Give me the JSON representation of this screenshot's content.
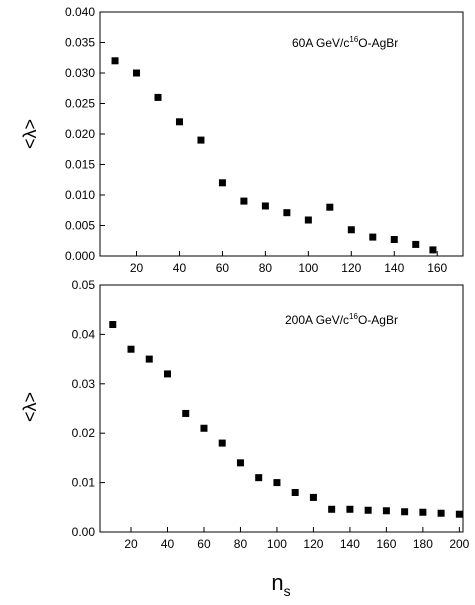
{
  "chart_data": [
    {
      "type": "scatter",
      "annotation": {
        "pre": "60A GeV/c",
        "sup": "16",
        "post": "O-AgBr"
      },
      "ylabel": "<λ>",
      "xlabel": "",
      "xlim": [
        3,
        172
      ],
      "ylim": [
        0,
        0.04
      ],
      "xticks": [
        20,
        40,
        60,
        80,
        100,
        120,
        140,
        160
      ],
      "yticks": [
        0.0,
        0.005,
        0.01,
        0.015,
        0.02,
        0.025,
        0.03,
        0.035,
        0.04
      ],
      "ytick_labels": [
        "0.000",
        "0.005",
        "0.010",
        "0.015",
        "0.020",
        "0.025",
        "0.030",
        "0.035",
        "0.040"
      ],
      "series": [
        {
          "x": [
            10,
            20,
            30,
            40,
            50,
            60,
            70,
            80,
            90,
            100,
            110,
            120,
            130,
            140,
            150,
            158
          ],
          "y": [
            0.032,
            0.03,
            0.026,
            0.022,
            0.019,
            0.012,
            0.009,
            0.0082,
            0.0071,
            0.0059,
            0.008,
            0.0043,
            0.0031,
            0.0027,
            0.0019,
            0.001
          ]
        }
      ]
    },
    {
      "type": "scatter",
      "annotation": {
        "pre": "200A GeV/c",
        "sup": "16",
        "post": "O-AgBr"
      },
      "ylabel": "<λ>",
      "xlabel": "n_s",
      "xlim": [
        3,
        202
      ],
      "ylim": [
        0,
        0.05
      ],
      "xticks": [
        20,
        40,
        60,
        80,
        100,
        120,
        140,
        160,
        180,
        200
      ],
      "yticks": [
        0.0,
        0.01,
        0.02,
        0.03,
        0.04,
        0.05
      ],
      "ytick_labels": [
        "0.00",
        "0.01",
        "0.02",
        "0.03",
        "0.04",
        "0.05"
      ],
      "series": [
        {
          "x": [
            10,
            20,
            30,
            40,
            50,
            60,
            70,
            80,
            90,
            100,
            110,
            120,
            130,
            140,
            150,
            160,
            170,
            180,
            190,
            200
          ],
          "y": [
            0.042,
            0.037,
            0.035,
            0.032,
            0.024,
            0.021,
            0.018,
            0.014,
            0.011,
            0.01,
            0.008,
            0.007,
            0.0046,
            0.0046,
            0.0044,
            0.0043,
            0.0041,
            0.004,
            0.0038,
            0.0036
          ]
        }
      ]
    }
  ],
  "xlabel_main": "n",
  "xlabel_sub": "s"
}
